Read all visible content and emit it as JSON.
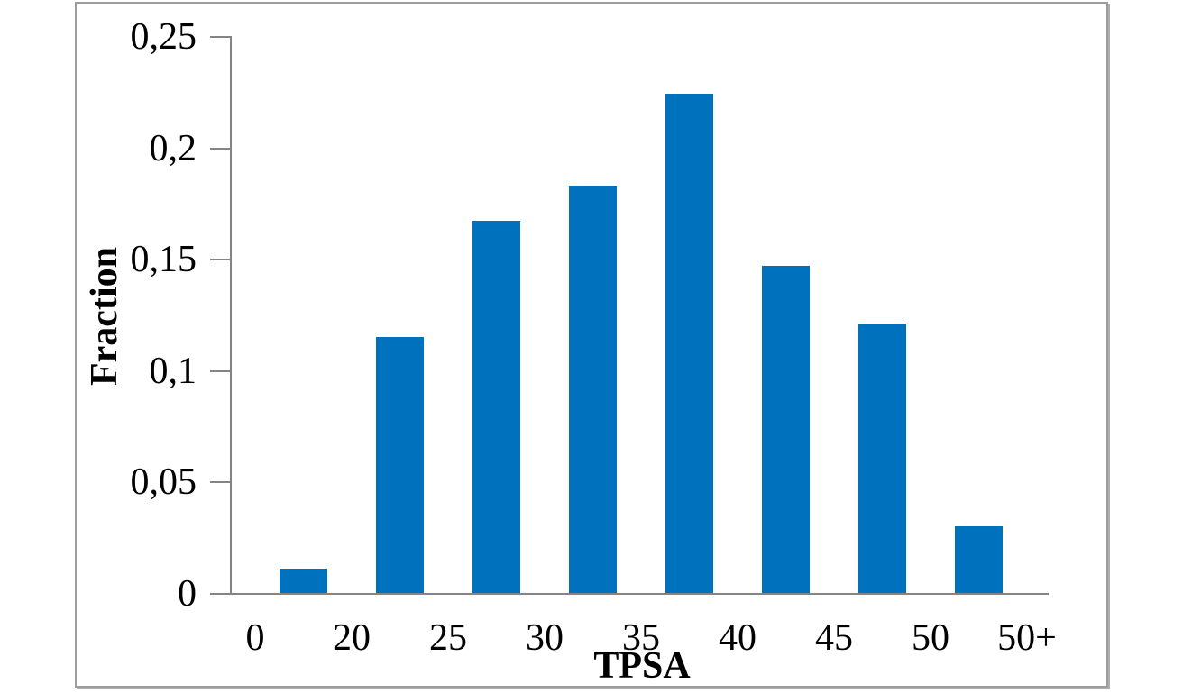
{
  "chart_data": {
    "type": "bar",
    "title": "",
    "xlabel": "TPSA",
    "ylabel": "Fraction",
    "categories": [
      "0-20",
      "20-25",
      "25-30",
      "30-35",
      "35-40",
      "40-45",
      "45-50",
      "50-50+"
    ],
    "bin_edge_labels": [
      "0",
      "20",
      "25",
      "30",
      "35",
      "40",
      "45",
      "50",
      "50+"
    ],
    "values": [
      0.011,
      0.115,
      0.167,
      0.183,
      0.224,
      0.147,
      0.121,
      0.03
    ],
    "ylim": [
      0,
      0.25
    ],
    "y_ticks": [
      0,
      0.05,
      0.1,
      0.15,
      0.2,
      0.25
    ],
    "y_tick_labels": [
      "0",
      "0,05",
      "0,1",
      "0,15",
      "0,2",
      "0,25"
    ],
    "decimal_separator": ",",
    "grid": false,
    "legend": false,
    "bar_color": "#0071BC",
    "axis_color": "#848484",
    "text_color": "#000000",
    "frame_border_color": "#9E9E9E"
  }
}
